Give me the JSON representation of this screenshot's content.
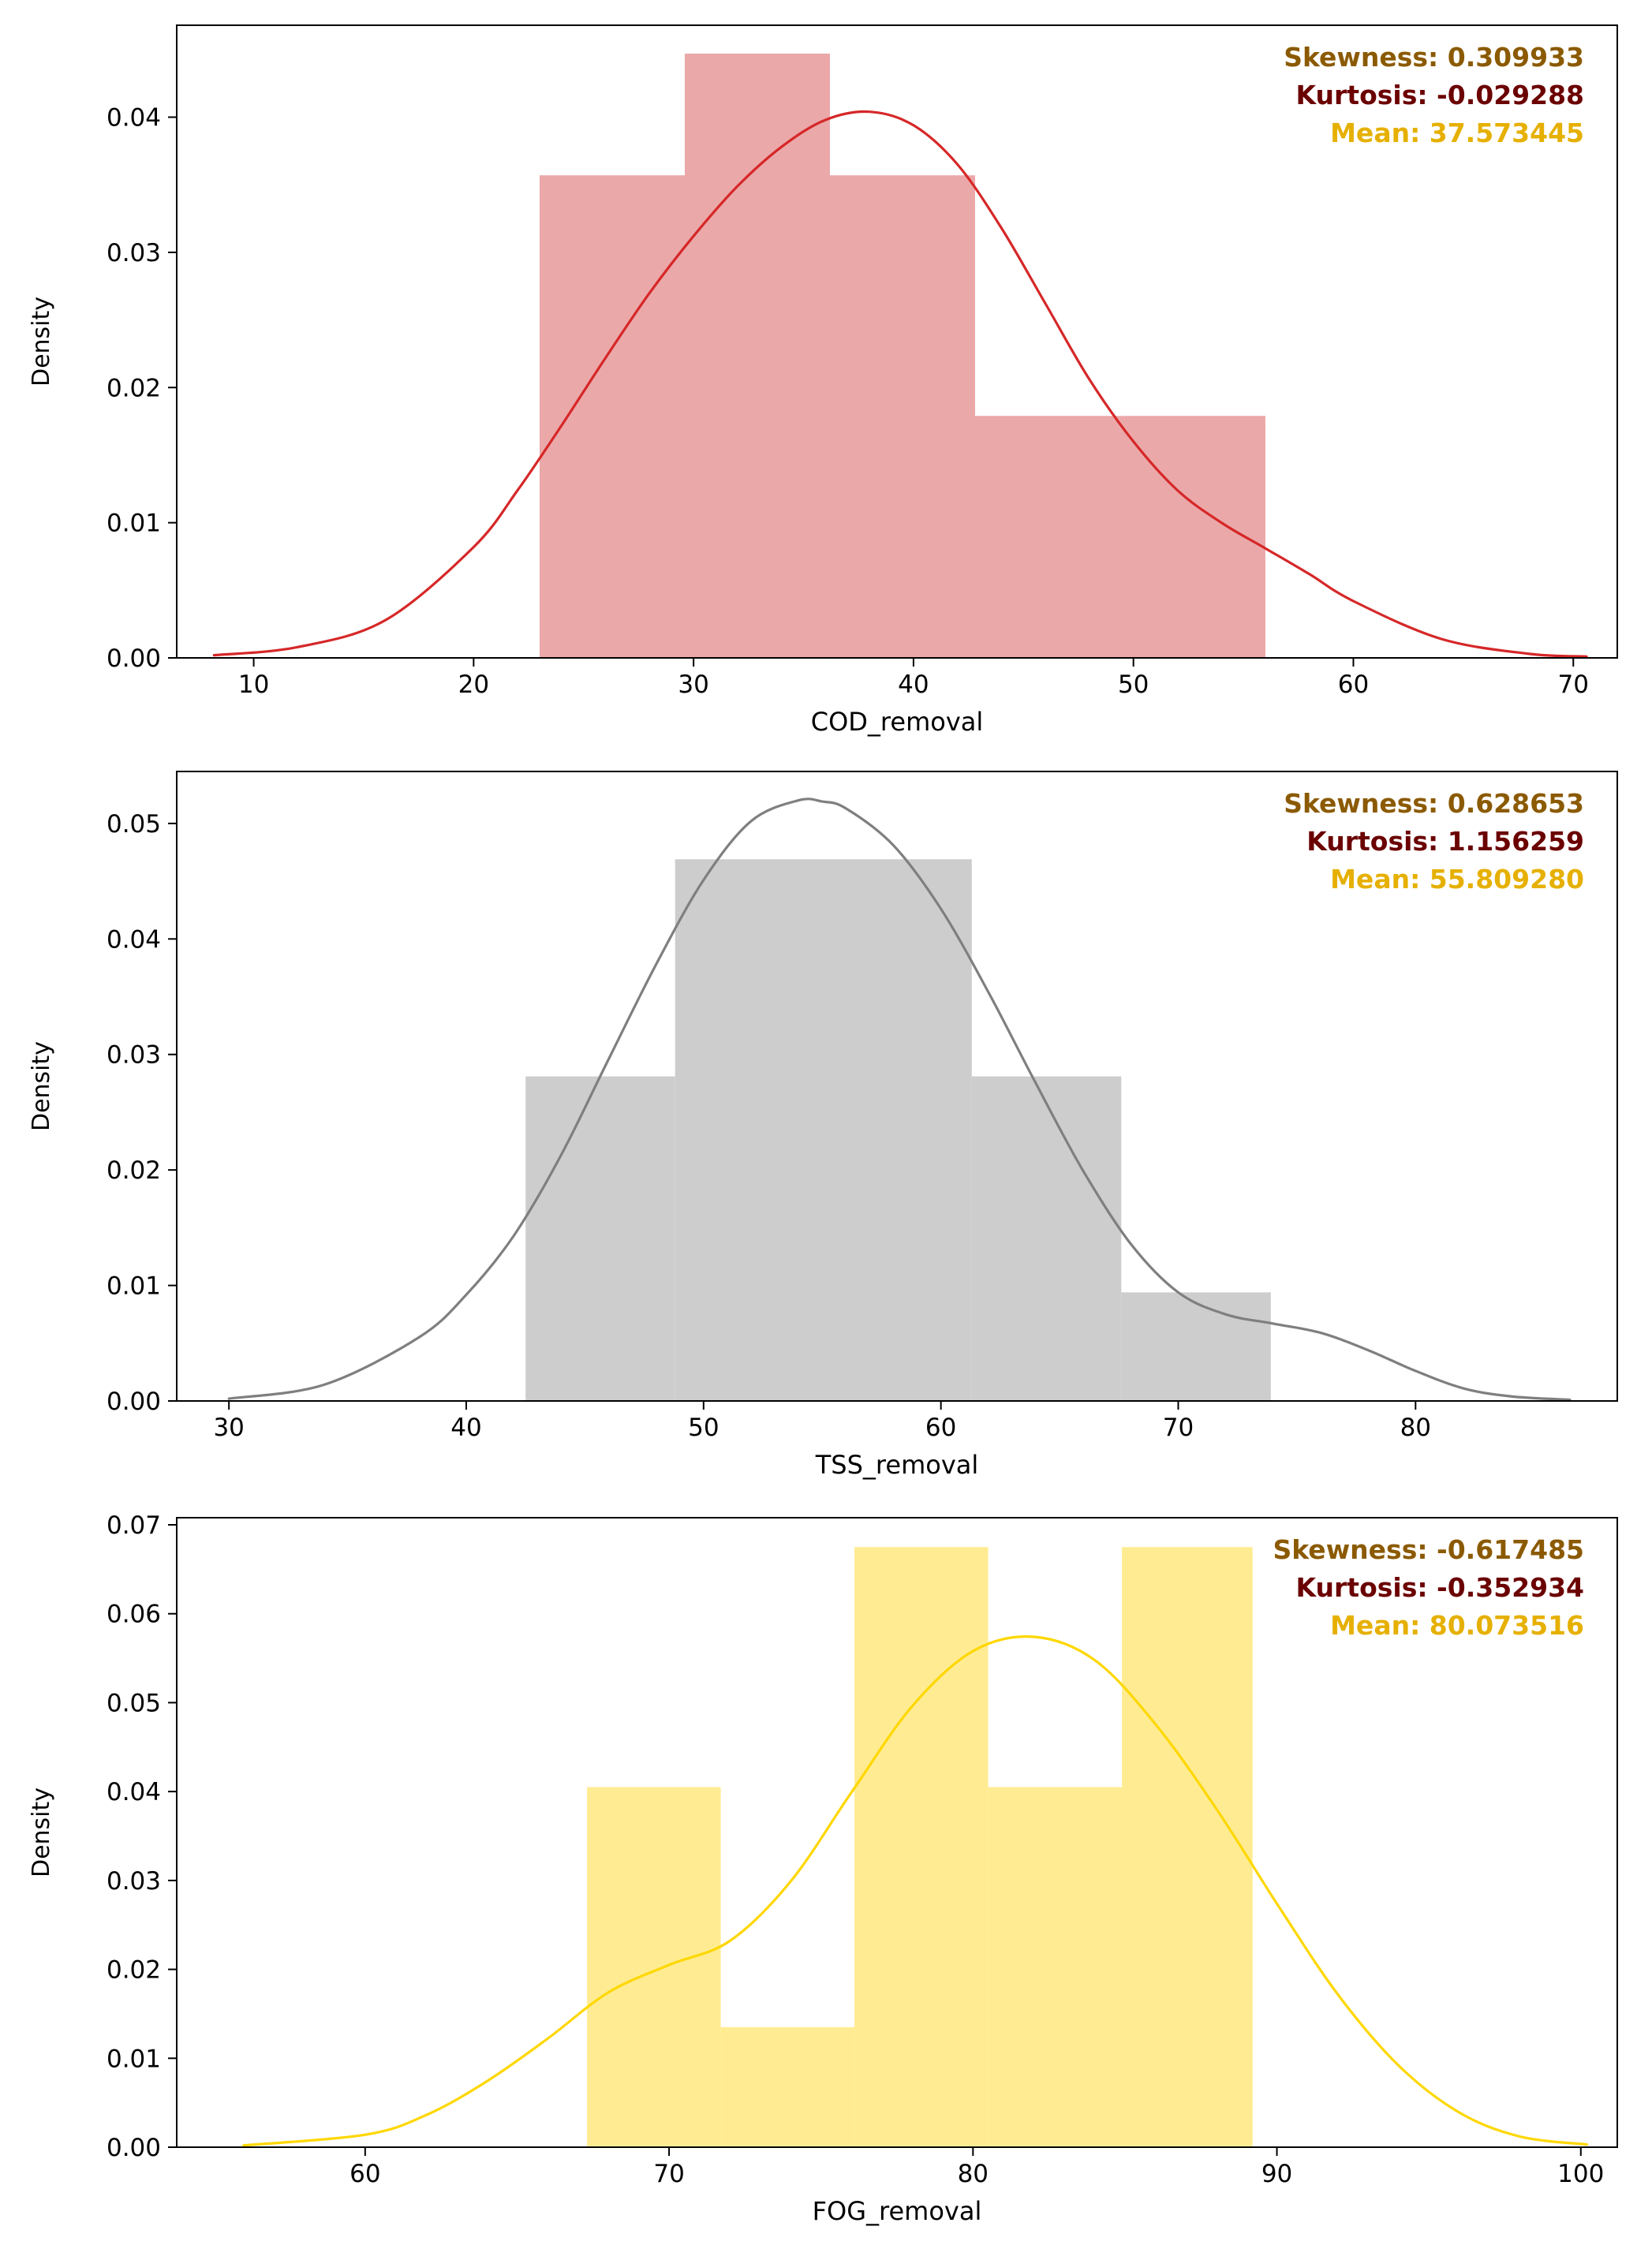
{
  "chart_data": [
    {
      "type": "histogram_kde",
      "xlabel": "COD_removal",
      "ylabel": "Density",
      "xlim": [
        6.5,
        72
      ],
      "ylim": [
        0,
        0.0468
      ],
      "xticks": [
        10,
        20,
        30,
        40,
        50,
        60,
        70
      ],
      "yticks": [
        0.0,
        0.01,
        0.02,
        0.03,
        0.04
      ],
      "ytick_labels": [
        "0.00",
        "0.01",
        "0.02",
        "0.03",
        "0.04"
      ],
      "bins": [
        {
          "x0": 23.0,
          "x1": 29.6,
          "density": 0.0357
        },
        {
          "x0": 29.6,
          "x1": 36.2,
          "density": 0.0447
        },
        {
          "x0": 36.2,
          "x1": 42.8,
          "density": 0.0357
        },
        {
          "x0": 42.8,
          "x1": 49.4,
          "density": 0.0179
        },
        {
          "x0": 49.4,
          "x1": 56.0,
          "density": 0.0179
        }
      ],
      "kde": {
        "x": [
          8.2,
          12,
          16,
          20,
          22,
          24,
          26,
          28,
          30,
          32,
          34,
          36,
          38,
          40,
          42,
          44,
          46,
          48,
          50,
          52,
          54,
          56,
          58,
          60,
          64,
          68,
          70.6
        ],
        "y": [
          0.0002,
          0.0008,
          0.0028,
          0.0082,
          0.0124,
          0.0172,
          0.0222,
          0.027,
          0.0312,
          0.0349,
          0.0378,
          0.0398,
          0.0404,
          0.0394,
          0.0365,
          0.0318,
          0.0262,
          0.0206,
          0.016,
          0.0124,
          0.01,
          0.0081,
          0.0062,
          0.0042,
          0.0014,
          0.0003,
          0.0001
        ]
      },
      "color": "#d62728",
      "bar_fill": "#eba8a9",
      "annotations": [
        {
          "text": "Skewness: 0.309933",
          "color": "#8b5a00"
        },
        {
          "text": "Kurtosis: -0.029288",
          "color": "#6b0000"
        },
        {
          "text": "Mean: 37.573445",
          "color": "#e6b000"
        }
      ]
    },
    {
      "type": "histogram_kde",
      "xlabel": "TSS_removal",
      "ylabel": "Density",
      "xlim": [
        27.8,
        88.5
      ],
      "ylim": [
        0,
        0.0545
      ],
      "xticks": [
        30,
        40,
        50,
        60,
        70,
        80
      ],
      "yticks": [
        0.0,
        0.01,
        0.02,
        0.03,
        0.04,
        0.05
      ],
      "ytick_labels": [
        "0.00",
        "0.01",
        "0.02",
        "0.03",
        "0.04",
        "0.05"
      ],
      "bins": [
        {
          "x0": 42.5,
          "x1": 48.8,
          "density": 0.0281
        },
        {
          "x0": 48.8,
          "x1": 61.3,
          "density": 0.0469
        },
        {
          "x0": 61.3,
          "x1": 67.6,
          "density": 0.0281
        },
        {
          "x0": 67.6,
          "x1": 73.9,
          "density": 0.0094
        }
      ],
      "kde": {
        "x": [
          30.0,
          34,
          38,
          40,
          42,
          44,
          46,
          48,
          50,
          52,
          54,
          55,
          56,
          58,
          60,
          62,
          64,
          66,
          68,
          70,
          72,
          74,
          76,
          78,
          80,
          82,
          84,
          86.5
        ],
        "y": [
          0.0002,
          0.0014,
          0.0055,
          0.0092,
          0.0143,
          0.0213,
          0.0296,
          0.0378,
          0.0451,
          0.0502,
          0.052,
          0.0519,
          0.0513,
          0.0481,
          0.0426,
          0.0354,
          0.0275,
          0.0199,
          0.0136,
          0.0094,
          0.0075,
          0.0067,
          0.0059,
          0.0044,
          0.0026,
          0.0011,
          0.0004,
          0.0001
        ]
      },
      "color": "#7f7f7f",
      "bar_fill": "#cdcdcd",
      "annotations": [
        {
          "text": "Skewness: 0.628653",
          "color": "#8b5a00"
        },
        {
          "text": "Kurtosis: 1.156259",
          "color": "#6b0000"
        },
        {
          "text": "Mean: 55.809280",
          "color": "#e6b000"
        }
      ]
    },
    {
      "type": "histogram_kde",
      "xlabel": "FOG_removal",
      "ylabel": "Density",
      "xlim": [
        53.8,
        101.2
      ],
      "ylim": [
        0,
        0.0708
      ],
      "xticks": [
        60,
        70,
        80,
        90,
        100
      ],
      "yticks": [
        0.0,
        0.01,
        0.02,
        0.03,
        0.04,
        0.05,
        0.06,
        0.07
      ],
      "ytick_labels": [
        "0.00",
        "0.01",
        "0.02",
        "0.03",
        "0.04",
        "0.05",
        "0.06",
        "0.07"
      ],
      "bins": [
        {
          "x0": 67.3,
          "x1": 71.7,
          "density": 0.0405
        },
        {
          "x0": 71.7,
          "x1": 76.1,
          "density": 0.0135
        },
        {
          "x0": 76.1,
          "x1": 80.5,
          "density": 0.0675
        },
        {
          "x0": 80.5,
          "x1": 84.9,
          "density": 0.0405
        },
        {
          "x0": 84.9,
          "x1": 89.2,
          "density": 0.0675
        }
      ],
      "kde": {
        "x": [
          56.0,
          60,
          62,
          64,
          66,
          68,
          70,
          72,
          74,
          76,
          78,
          80,
          82,
          84,
          86,
          88,
          90,
          92,
          94,
          96,
          98,
          100.2
        ],
        "y": [
          0.0002,
          0.0014,
          0.0036,
          0.0074,
          0.0122,
          0.0174,
          0.0205,
          0.0232,
          0.0299,
          0.0399,
          0.0496,
          0.0558,
          0.0574,
          0.0548,
          0.0476,
          0.0381,
          0.0274,
          0.0172,
          0.0092,
          0.0039,
          0.0012,
          0.0003
        ]
      },
      "color": "#ffd700",
      "bar_fill": "#ffec92",
      "annotations": [
        {
          "text": "Skewness: -0.617485",
          "color": "#8b5a00"
        },
        {
          "text": "Kurtosis: -0.352934",
          "color": "#6b0000"
        },
        {
          "text": "Mean: 80.073516",
          "color": "#e6b000"
        }
      ]
    }
  ]
}
